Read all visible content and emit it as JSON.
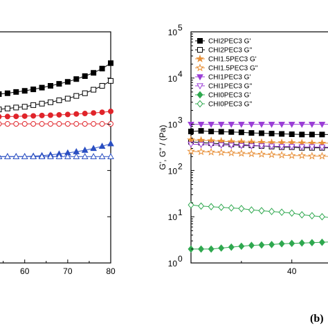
{
  "chart_data": [
    {
      "panel": "left",
      "type": "line",
      "xlabel": "",
      "ylabel": "",
      "x_ticks": [
        "60",
        "70",
        "80"
      ],
      "xlim": [
        52,
        80
      ],
      "ylim_log": [
        0,
        5
      ],
      "series": [
        {
          "color": "#000000",
          "marker": "square",
          "filled": true,
          "x": [
            52,
            54,
            56,
            58,
            60,
            62,
            64,
            66,
            68,
            70,
            72,
            74,
            76,
            78,
            80
          ],
          "y": [
            4300,
            4500,
            4700,
            5000,
            5300,
            5700,
            6200,
            6800,
            7500,
            8300,
            9500,
            11000,
            13000,
            16000,
            21000
          ]
        },
        {
          "color": "#000000",
          "marker": "square",
          "filled": false,
          "x": [
            52,
            54,
            56,
            58,
            60,
            62,
            64,
            66,
            68,
            70,
            72,
            74,
            76,
            78,
            80
          ],
          "y": [
            2000,
            2100,
            2200,
            2300,
            2400,
            2600,
            2800,
            3000,
            3300,
            3600,
            4100,
            4700,
            5600,
            6800,
            8700
          ]
        },
        {
          "color": "#e0242a",
          "marker": "circle",
          "filled": true,
          "x": [
            52,
            54,
            56,
            58,
            60,
            62,
            64,
            66,
            68,
            70,
            72,
            74,
            76,
            78,
            80
          ],
          "y": [
            1450,
            1460,
            1470,
            1480,
            1500,
            1520,
            1550,
            1570,
            1600,
            1630,
            1670,
            1710,
            1760,
            1820,
            1900
          ]
        },
        {
          "color": "#e0242a",
          "marker": "circle",
          "filled": false,
          "x": [
            52,
            54,
            56,
            58,
            60,
            62,
            64,
            66,
            68,
            70,
            72,
            74,
            76,
            78,
            80
          ],
          "y": [
            1020,
            1020,
            1020,
            1020,
            1020,
            1020,
            1020,
            1020,
            1020,
            1020,
            1020,
            1020,
            1020,
            1020,
            1020
          ]
        },
        {
          "color": "#2a4fc2",
          "marker": "triangle",
          "filled": true,
          "x": [
            52,
            54,
            56,
            58,
            60,
            62,
            64,
            66,
            68,
            70,
            72,
            74,
            76,
            78,
            80
          ],
          "y": [
            200,
            200,
            200,
            200,
            200,
            205,
            210,
            218,
            228,
            240,
            255,
            275,
            300,
            335,
            380
          ]
        },
        {
          "color": "#2a4fc2",
          "marker": "triangle",
          "filled": false,
          "x": [
            52,
            54,
            56,
            58,
            60,
            62,
            64,
            66,
            68,
            70,
            72,
            74,
            76,
            78,
            80
          ],
          "y": [
            200,
            200,
            200,
            200,
            200,
            200,
            200,
            200,
            200,
            200,
            200,
            200,
            200,
            200,
            200
          ]
        }
      ]
    },
    {
      "panel": "right",
      "type": "line",
      "xlabel": "",
      "ylabel": "G', G'' / (Pa)",
      "x_ticks": [
        "40"
      ],
      "y_ticks": [
        "10",
        "10",
        "10",
        "10",
        "10",
        "10"
      ],
      "y_exponents": [
        "0",
        "1",
        "2",
        "3",
        "4",
        "5"
      ],
      "xlim": [
        20,
        48
      ],
      "ylim_log": [
        0,
        5
      ],
      "y_scale": "log",
      "legend_position": "top-left",
      "series": [
        {
          "name": "CHI2PEC3 G'",
          "color": "#000000",
          "marker": "square",
          "filled": true,
          "x": [
            20,
            22,
            24,
            26,
            28,
            30,
            32,
            34,
            36,
            38,
            40,
            42,
            44,
            46,
            48
          ],
          "y": [
            700,
            720,
            700,
            690,
            680,
            670,
            650,
            640,
            630,
            620,
            610,
            600,
            600,
            600,
            600
          ]
        },
        {
          "name": "CHI2PEC3 G''",
          "color": "#000000",
          "marker": "square",
          "filled": false,
          "x": [
            20,
            22,
            24,
            26,
            28,
            30,
            32,
            34,
            36,
            38,
            40,
            42,
            44,
            46,
            48
          ],
          "y": [
            420,
            400,
            390,
            380,
            370,
            360,
            350,
            340,
            330,
            320,
            320,
            310,
            310,
            310,
            310
          ]
        },
        {
          "name": "CHI1.5PEC3 G'",
          "color": "#e8913a",
          "marker": "star",
          "filled": true,
          "x": [
            20,
            22,
            24,
            26,
            28,
            30,
            32,
            34,
            36,
            38,
            40,
            42,
            44,
            46,
            48
          ],
          "y": [
            460,
            450,
            440,
            430,
            420,
            415,
            410,
            405,
            400,
            400,
            400,
            395,
            390,
            390,
            390
          ]
        },
        {
          "name": "CHI1.5PEC3 G''",
          "color": "#e8913a",
          "marker": "star",
          "filled": false,
          "x": [
            20,
            22,
            24,
            26,
            28,
            30,
            32,
            34,
            36,
            38,
            40,
            42,
            44,
            46,
            48
          ],
          "y": [
            260,
            255,
            250,
            245,
            240,
            235,
            230,
            225,
            220,
            215,
            210,
            210,
            205,
            205,
            200
          ]
        },
        {
          "name": "CHI1PEC3 G'",
          "color": "#9b3fd6",
          "marker": "triangle-down",
          "filled": true,
          "x": [
            20,
            22,
            24,
            26,
            28,
            30,
            32,
            34,
            36,
            38,
            40,
            42,
            44,
            46,
            48
          ],
          "y": [
            1000,
            1000,
            1000,
            1000,
            1000,
            1000,
            1000,
            1000,
            1000,
            1000,
            1000,
            1000,
            1000,
            1000,
            1000
          ]
        },
        {
          "name": "CHI1PEC3 G''",
          "color": "#9b3fd6",
          "marker": "triangle-down",
          "filled": false,
          "x": [
            20,
            22,
            24,
            26,
            28,
            30,
            32,
            34,
            36,
            38,
            40,
            42,
            44,
            46,
            48
          ],
          "y": [
            370,
            365,
            360,
            355,
            350,
            345,
            340,
            340,
            335,
            330,
            330,
            325,
            325,
            320,
            320
          ]
        },
        {
          "name": "CHI0PEC3 G'",
          "color": "#2fa84f",
          "marker": "diamond",
          "filled": true,
          "x": [
            20,
            22,
            24,
            26,
            28,
            30,
            32,
            34,
            36,
            38,
            40,
            42,
            44,
            46,
            48
          ],
          "y": [
            2.0,
            2.0,
            2.0,
            2.1,
            2.2,
            2.3,
            2.4,
            2.45,
            2.5,
            2.6,
            2.65,
            2.7,
            2.75,
            2.8,
            2.85
          ]
        },
        {
          "name": "CHI0PEC3 G''",
          "color": "#2fa84f",
          "marker": "diamond",
          "filled": false,
          "x": [
            20,
            22,
            24,
            26,
            28,
            30,
            32,
            34,
            36,
            38,
            40,
            42,
            44,
            46,
            48
          ],
          "y": [
            18,
            17,
            16.5,
            16,
            15.5,
            15,
            14,
            13.5,
            13,
            12.5,
            12,
            11,
            10.5,
            10,
            9.5
          ]
        }
      ]
    }
  ],
  "panel_label": "(b)"
}
